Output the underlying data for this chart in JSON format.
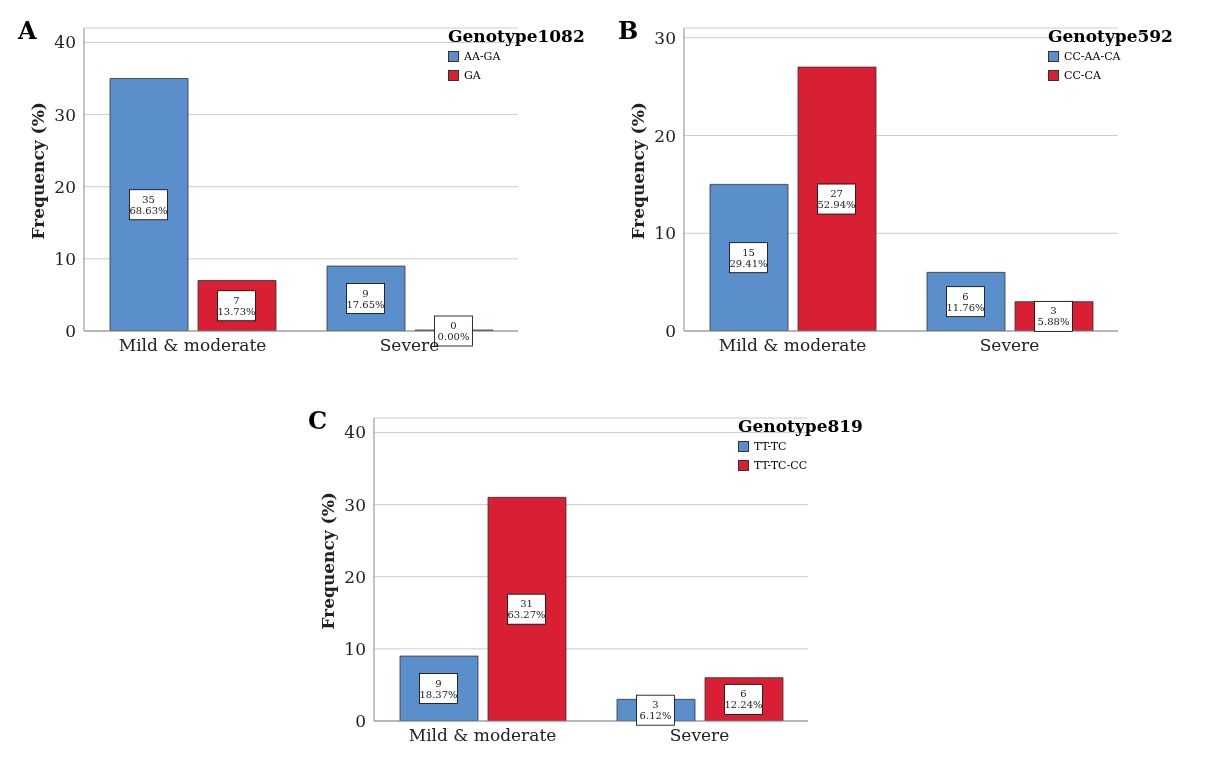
{
  "chart_data": [
    {
      "type": "bar",
      "title": "A",
      "ylabel": "Frequency (%)",
      "legend_title": "Genotype1082",
      "categories": [
        "Mild & moderate",
        "Severe"
      ],
      "ylim": [
        0,
        42
      ],
      "yticks": [
        0,
        10,
        20,
        30,
        40
      ],
      "grid": "y",
      "legend": "top right",
      "series": [
        {
          "name": "AA-GA",
          "color": "#5b8fcc",
          "values": [
            35,
            9
          ],
          "value_labels": [
            "35\n68.63%",
            "9\n17.65%"
          ]
        },
        {
          "name": "GA",
          "color": "#d81f33",
          "values": [
            7,
            0
          ],
          "value_labels": [
            "7\n13.73%",
            "0\n0.00%"
          ]
        }
      ]
    },
    {
      "type": "bar",
      "title": "B",
      "ylabel": "Frequency (%)",
      "legend_title": "Genotype592",
      "categories": [
        "Mild & moderate",
        "Severe"
      ],
      "ylim": [
        0,
        31
      ],
      "yticks": [
        0,
        10,
        20,
        30
      ],
      "grid": "y",
      "legend": "top right",
      "series": [
        {
          "name": "CC-AA-CA",
          "color": "#5b8fcc",
          "values": [
            15,
            6
          ],
          "value_labels": [
            "15\n29.41%",
            "6\n11.76%"
          ]
        },
        {
          "name": "CC-CA",
          "color": "#d81f33",
          "values": [
            27,
            3
          ],
          "value_labels": [
            "27\n52.94%",
            "3\n5.88%"
          ]
        }
      ]
    },
    {
      "type": "bar",
      "title": "C",
      "ylabel": "Frequency (%)",
      "legend_title": "Genotype819",
      "categories": [
        "Mild & moderate",
        "Severe"
      ],
      "ylim": [
        0,
        42
      ],
      "yticks": [
        0,
        10,
        20,
        30,
        40
      ],
      "grid": "y",
      "legend": "top right",
      "series": [
        {
          "name": "TT-TC",
          "color": "#5b8fcc",
          "values": [
            9,
            3
          ],
          "value_labels": [
            "9\n18.37%",
            "3\n6.12%"
          ]
        },
        {
          "name": "TT-TC-CC",
          "color": "#d81f33",
          "values": [
            31,
            6
          ],
          "value_labels": [
            "31\n63.27%",
            "6\n12.24%"
          ]
        }
      ]
    }
  ]
}
